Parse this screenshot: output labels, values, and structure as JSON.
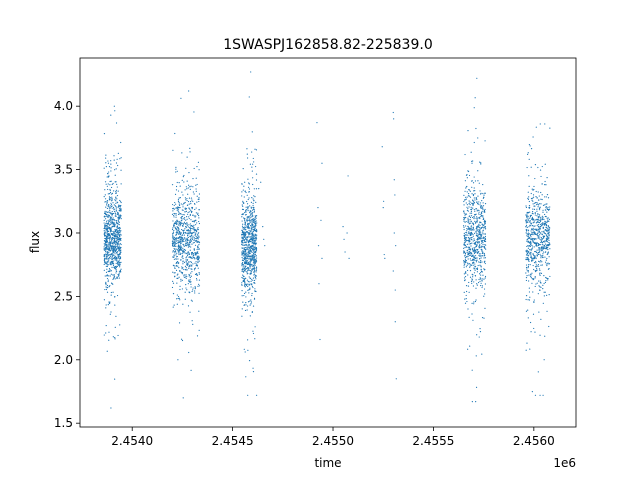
{
  "chart_data": {
    "type": "scatter",
    "title": "1SWASPJ162858.82-225839.0",
    "xlabel": "time",
    "ylabel": "flux",
    "x_offset_label": "1e6",
    "xlim": [
      2453740,
      2456210
    ],
    "ylim": [
      1.47,
      4.38
    ],
    "xticks": [
      {
        "value": 2454000,
        "label": "2.4540"
      },
      {
        "value": 2454500,
        "label": "2.4545"
      },
      {
        "value": 2455000,
        "label": "2.4550"
      },
      {
        "value": 2455500,
        "label": "2.4555"
      },
      {
        "value": 2456000,
        "label": "2.4560"
      }
    ],
    "yticks": [
      {
        "value": 1.5,
        "label": "1.5"
      },
      {
        "value": 2.0,
        "label": "2.0"
      },
      {
        "value": 2.5,
        "label": "2.5"
      },
      {
        "value": 3.0,
        "label": "3.0"
      },
      {
        "value": 3.5,
        "label": "3.5"
      },
      {
        "value": 4.0,
        "label": "4.0"
      }
    ],
    "marker_color": "#1f77b4",
    "grid": false,
    "legend": "none",
    "observing_seasons": [
      {
        "start": 2453860,
        "end": 2453945,
        "median_flux": 2.95,
        "flux_min": 1.62,
        "flux_max": 4.0,
        "count": 900
      },
      {
        "start": 2454200,
        "end": 2454335,
        "median_flux": 2.95,
        "flux_min": 1.7,
        "flux_max": 4.12,
        "count": 820
      },
      {
        "start": 2454545,
        "end": 2454620,
        "median_flux": 2.9,
        "flux_min": 1.72,
        "flux_max": 4.27,
        "count": 820
      },
      {
        "start": 2455650,
        "end": 2455760,
        "median_flux": 2.95,
        "flux_min": 1.67,
        "flux_max": 4.22,
        "count": 720
      },
      {
        "start": 2455960,
        "end": 2456080,
        "median_flux": 2.95,
        "flux_min": 1.72,
        "flux_max": 3.86,
        "count": 720
      }
    ],
    "sparse_points": [
      [
        2454630,
        3.35
      ],
      [
        2454650,
        3.05
      ],
      [
        2454655,
        2.95
      ],
      [
        2454660,
        2.9
      ],
      [
        2454640,
        3.4
      ],
      [
        2454920,
        3.87
      ],
      [
        2454925,
        3.2
      ],
      [
        2454928,
        2.9
      ],
      [
        2454930,
        2.6
      ],
      [
        2454935,
        2.16
      ],
      [
        2454940,
        3.1
      ],
      [
        2454945,
        2.8
      ],
      [
        2454945,
        3.55
      ],
      [
        2455050,
        3.05
      ],
      [
        2455055,
        2.95
      ],
      [
        2455060,
        2.85
      ],
      [
        2455080,
        2.8
      ],
      [
        2455075,
        3.45
      ],
      [
        2455070,
        3.0
      ],
      [
        2455245,
        3.68
      ],
      [
        2455250,
        3.2
      ],
      [
        2455255,
        2.83
      ],
      [
        2455252,
        3.25
      ],
      [
        2455258,
        2.8
      ],
      [
        2455300,
        3.95
      ],
      [
        2455302,
        3.9
      ],
      [
        2455305,
        3.42
      ],
      [
        2455305,
        3.0
      ],
      [
        2455310,
        2.55
      ],
      [
        2455310,
        2.3
      ],
      [
        2455315,
        1.85
      ],
      [
        2455308,
        3.3
      ],
      [
        2455312,
        2.9
      ],
      [
        2455300,
        2.7
      ]
    ]
  }
}
